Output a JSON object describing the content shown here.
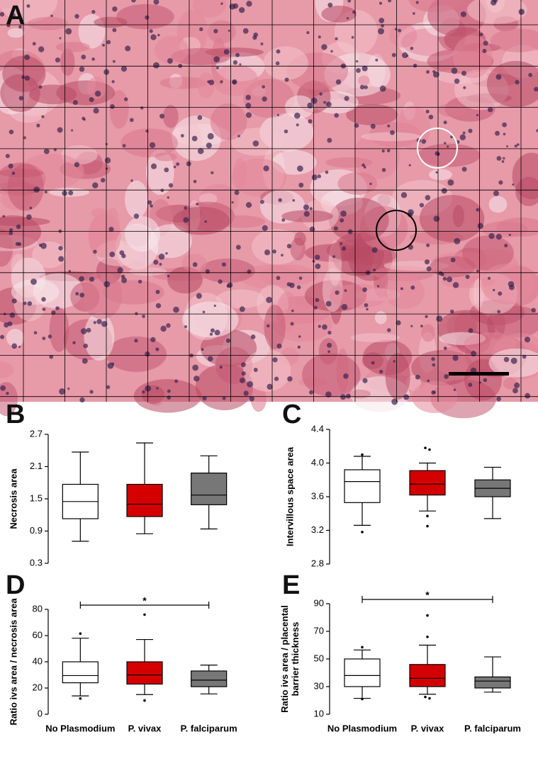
{
  "image_panel": {
    "label": "A"
  },
  "chart_data": [
    {
      "type": "box",
      "label": "B",
      "y_label": [
        "Necrosis area"
      ],
      "categories": [
        null,
        null,
        null
      ],
      "colors": [
        "#ffffff",
        "#d40000",
        "#777777"
      ],
      "ylim": [
        0.3,
        2.7
      ],
      "yticks": [
        0.3,
        0.9,
        1.5,
        2.1,
        2.7
      ],
      "boxes": [
        {
          "whisker_low": 0.71,
          "q1": 1.13,
          "median": 1.45,
          "q3": 1.77,
          "whisker_high": 2.37,
          "outliers": []
        },
        {
          "whisker_low": 0.85,
          "q1": 1.17,
          "median": 1.4,
          "q3": 1.77,
          "whisker_high": 2.54,
          "outliers": []
        },
        {
          "whisker_low": 0.94,
          "q1": 1.39,
          "median": 1.57,
          "q3": 1.98,
          "whisker_high": 2.3,
          "outliers": []
        }
      ]
    },
    {
      "type": "box",
      "label": "C",
      "y_label": [
        "Intervillous space area"
      ],
      "categories": [
        null,
        null,
        null
      ],
      "colors": [
        "#ffffff",
        "#d40000",
        "#777777"
      ],
      "ylim": [
        2.8,
        4.4
      ],
      "yticks": [
        2.8,
        3.2,
        3.6,
        {
          "value": 4,
          "label": "4.0"
        },
        4.4
      ],
      "boxes": [
        {
          "whisker_low": 3.26,
          "q1": 3.53,
          "median": 3.78,
          "q3": 3.92,
          "whisker_high": 4.08,
          "outliers": [
            4.1,
            3.18
          ]
        },
        {
          "whisker_low": 3.43,
          "q1": 3.62,
          "median": 3.75,
          "q3": 3.91,
          "whisker_high": 4.0,
          "outliers": [
            4.18,
            4.16,
            3.37,
            3.25
          ]
        },
        {
          "whisker_low": 3.34,
          "q1": 3.6,
          "median": 3.7,
          "q3": 3.8,
          "whisker_high": 3.95,
          "outliers": []
        }
      ]
    },
    {
      "type": "box",
      "label": "D",
      "y_label": [
        "Ratio ivs area / necrosis area"
      ],
      "categories": [
        "No Plasmodium",
        "P. vivax",
        "P. falciparum"
      ],
      "colors": [
        "#ffffff",
        "#d40000",
        "#777777"
      ],
      "ylim": [
        0,
        80
      ],
      "yticks": [
        0,
        20,
        40,
        60,
        80
      ],
      "significance": {
        "between": [
          "No Plasmodium",
          "P. falciparum"
        ],
        "label": "*"
      },
      "boxes": [
        {
          "whisker_low": 14,
          "q1": 24,
          "median": 29.5,
          "q3": 40,
          "whisker_high": 58,
          "outliers": [
            61.5,
            12
          ]
        },
        {
          "whisker_low": 15,
          "q1": 23,
          "median": 30,
          "q3": 40,
          "whisker_high": 57,
          "outliers": [
            76,
            10.5
          ]
        },
        {
          "whisker_low": 15.5,
          "q1": 21,
          "median": 26,
          "q3": 33,
          "whisker_high": 37.5,
          "outliers": []
        }
      ]
    },
    {
      "type": "box",
      "label": "E",
      "y_label": [
        "Ratio ivs area / placental",
        "barrier thickness"
      ],
      "categories": [
        "No Plasmodium",
        "P. vivax",
        "P. falciparum"
      ],
      "colors": [
        "#ffffff",
        "#d40000",
        "#777777"
      ],
      "ylim": [
        10,
        90
      ],
      "yticks": [
        10,
        30,
        50,
        70,
        90
      ],
      "significance": {
        "between": [
          "No Plasmodium",
          "P. falciparum"
        ],
        "label": "*"
      },
      "boxes": [
        {
          "whisker_low": 21.5,
          "q1": 30,
          "median": 38,
          "q3": 50,
          "whisker_high": 56.5,
          "outliers": [
            58.5,
            21
          ]
        },
        {
          "whisker_low": 24.5,
          "q1": 30,
          "median": 36,
          "q3": 46,
          "whisker_high": 60,
          "outliers": [
            81.5,
            66,
            22.5,
            21.5
          ]
        },
        {
          "whisker_low": 26,
          "q1": 29,
          "median": 34,
          "q3": 37,
          "whisker_high": 51.5,
          "outliers": []
        }
      ]
    }
  ]
}
